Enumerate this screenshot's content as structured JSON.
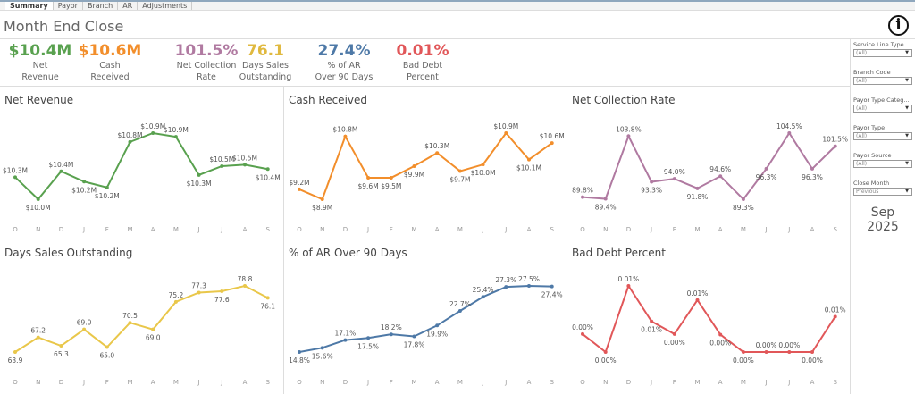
{
  "tabs": [
    "Summary",
    "Payor",
    "Branch",
    "AR",
    "Adjustments"
  ],
  "title": "Month End Close",
  "info_icon": "info-circle-icon",
  "kpis": [
    {
      "value": "$10.4M",
      "label": "Net\nRevenue",
      "color": "#59a14f"
    },
    {
      "value": "$10.6M",
      "label": "Cash\nReceived",
      "color": "#f28e2b"
    },
    {
      "value": "101.5%",
      "label": "Net Collection\nRate",
      "color": "#b07aa1"
    },
    {
      "value": "76.1",
      "label": "Days Sales\nOutstanding",
      "color": "#e0b93f"
    },
    {
      "value": "27.4%",
      "label": "% of AR\nOver 90 Days",
      "color": "#4e79a7"
    },
    {
      "value": "0.01%",
      "label": "Bad Debt\nPercent",
      "color": "#e15759"
    }
  ],
  "filters": [
    {
      "label": "Service Line Type",
      "value": "(All)"
    },
    {
      "label": "Branch Code",
      "value": "(All)"
    },
    {
      "label": "Payor Type Categ...",
      "value": "(All)"
    },
    {
      "label": "Payor Type",
      "value": "(All)"
    },
    {
      "label": "Payor Source",
      "value": "(All)"
    },
    {
      "label": "Close Month",
      "value": "Previous"
    }
  ],
  "selected_month": "Sep",
  "selected_year": "2025",
  "chart_data": [
    {
      "type": "line",
      "title": "Net Revenue",
      "color": "#59a14f",
      "categories": [
        "O",
        "N",
        "D",
        "J",
        "F",
        "M",
        "A",
        "M",
        "J",
        "J",
        "A",
        "S"
      ],
      "values": [
        10.3,
        10.0,
        10.38,
        10.24,
        10.16,
        10.78,
        10.9,
        10.85,
        10.33,
        10.45,
        10.47,
        10.41
      ],
      "labels": [
        "$10.3M",
        "$10.0M",
        "$10.4M",
        "$10.2M",
        "$10.2M",
        "$10.8M",
        "$10.9M",
        "$10.9M",
        "$10.3M",
        "$10.5M",
        "$10.5M",
        "$10.4M"
      ]
    },
    {
      "type": "line",
      "title": "Cash Received",
      "color": "#f28e2b",
      "categories": [
        "O",
        "N",
        "D",
        "J",
        "F",
        "M",
        "A",
        "M",
        "J",
        "J",
        "A",
        "S"
      ],
      "values": [
        9.2,
        8.9,
        10.8,
        9.55,
        9.55,
        9.9,
        10.3,
        9.75,
        9.95,
        10.9,
        10.1,
        10.6
      ],
      "labels": [
        "$9.2M",
        "$8.9M",
        "$10.8M",
        "$9.6M",
        "$9.5M",
        "$9.9M",
        "$10.3M",
        "$9.7M",
        "$10.0M",
        "$10.9M",
        "$10.1M",
        "$10.6M"
      ]
    },
    {
      "type": "line",
      "title": "Net Collection Rate",
      "color": "#b07aa1",
      "categories": [
        "O",
        "N",
        "D",
        "J",
        "F",
        "M",
        "A",
        "M",
        "J",
        "J",
        "A",
        "S"
      ],
      "values": [
        89.8,
        89.4,
        103.8,
        93.3,
        94.0,
        91.8,
        94.6,
        89.3,
        96.3,
        104.5,
        96.3,
        101.5
      ],
      "labels": [
        "89.8%",
        "89.4%",
        "103.8%",
        "93.3%",
        "94.0%",
        "91.8%",
        "94.6%",
        "89.3%",
        "96.3%",
        "104.5%",
        "96.3%",
        "101.5%"
      ]
    },
    {
      "type": "line",
      "title": "Days Sales Outstanding",
      "color": "#e9c74a",
      "categories": [
        "O",
        "N",
        "D",
        "J",
        "F",
        "M",
        "A",
        "M",
        "J",
        "J",
        "A",
        "S"
      ],
      "values": [
        63.9,
        67.2,
        65.3,
        69.0,
        65.0,
        70.5,
        69.0,
        75.2,
        77.3,
        77.6,
        78.8,
        76.1
      ],
      "labels": [
        "63.9",
        "67.2",
        "65.3",
        "69.0",
        "65.0",
        "70.5",
        "69.0",
        "75.2",
        "77.3",
        "77.6",
        "78.8",
        "76.1"
      ]
    },
    {
      "type": "line",
      "title": "% of AR Over 90 Days",
      "color": "#4e79a7",
      "categories": [
        "O",
        "N",
        "D",
        "J",
        "F",
        "M",
        "A",
        "M",
        "J",
        "J",
        "A",
        "S"
      ],
      "values": [
        14.8,
        15.6,
        17.1,
        17.5,
        18.2,
        17.8,
        19.9,
        22.7,
        25.4,
        27.3,
        27.5,
        27.4
      ],
      "labels": [
        "14.8%",
        "15.6%",
        "17.1%",
        "17.5%",
        "18.2%",
        "17.8%",
        "19.9%",
        "22.7%",
        "25.4%",
        "27.3%",
        "27.5%",
        "27.4%"
      ]
    },
    {
      "type": "line",
      "title": "Bad Debt Percent",
      "color": "#e15759",
      "categories": [
        "O",
        "N",
        "D",
        "J",
        "F",
        "M",
        "A",
        "M",
        "J",
        "J",
        "A",
        "S"
      ],
      "values": [
        0.0038,
        0.0,
        0.014,
        0.0065,
        0.0038,
        0.011,
        0.0037,
        0.0,
        0.0,
        0.0,
        0.0,
        0.0075
      ],
      "labels": [
        "0.00%",
        "0.00%",
        "0.01%",
        "0.01%",
        "0.00%",
        "0.01%",
        "0.00%",
        "0.00%",
        "0.00%",
        "0.00%",
        "0.00%",
        "0.01%"
      ]
    }
  ]
}
